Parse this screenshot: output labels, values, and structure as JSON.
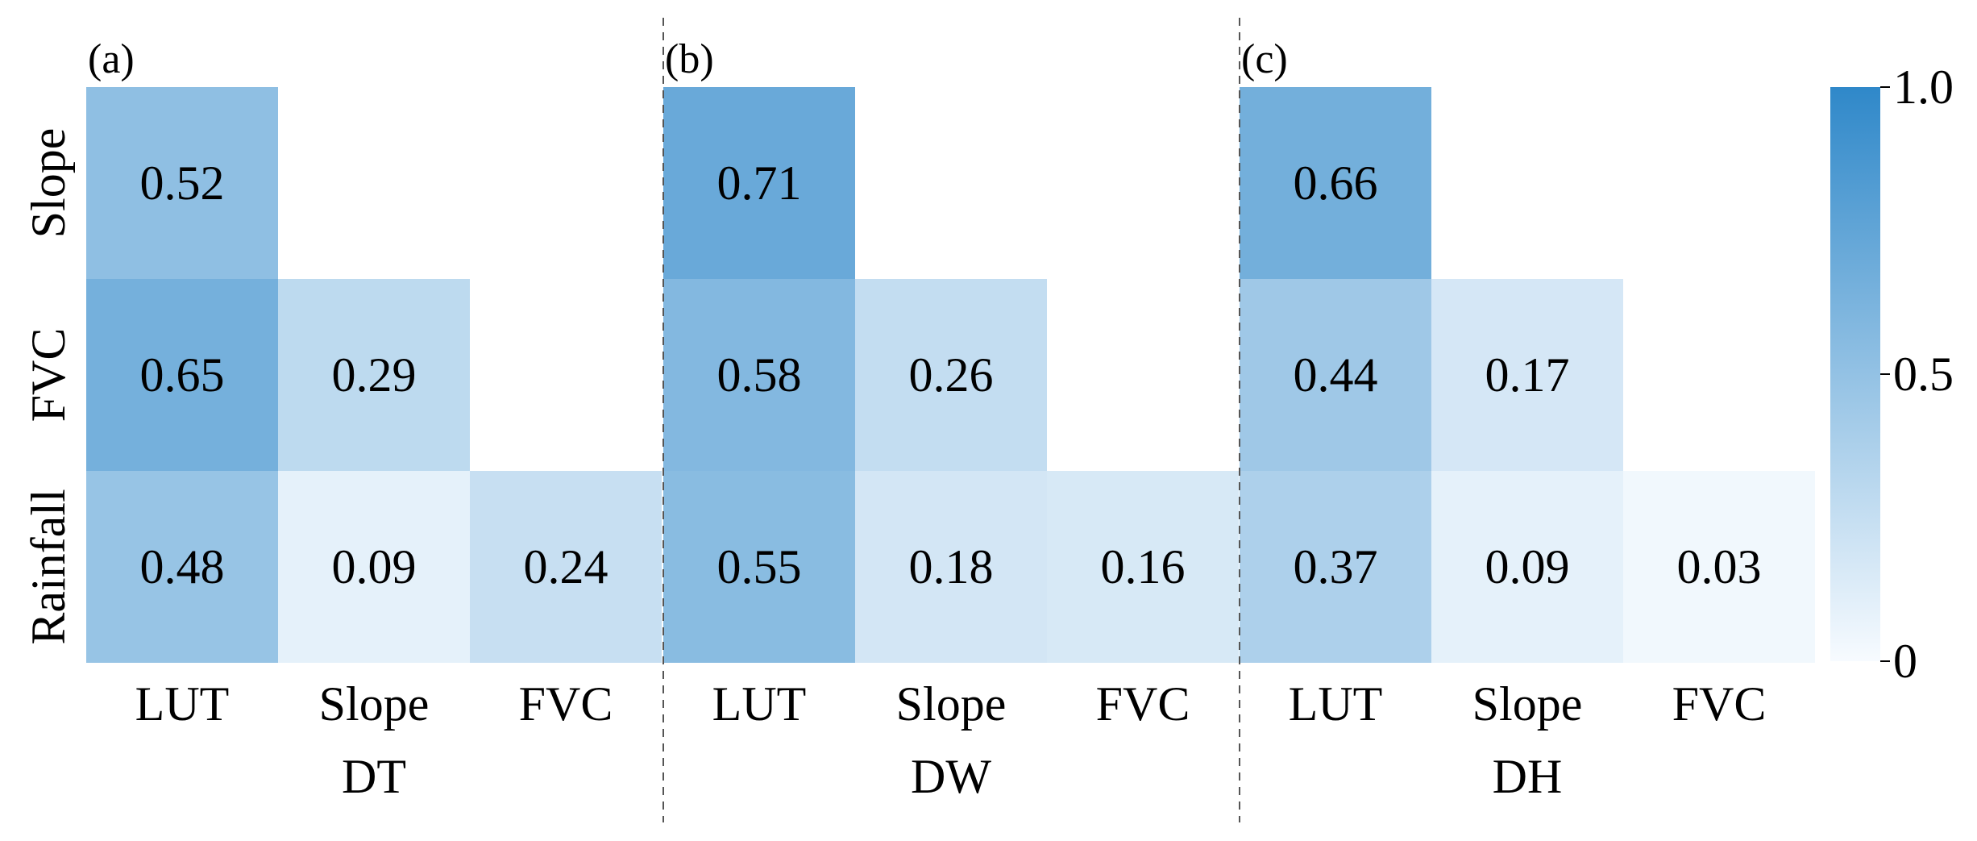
{
  "chart_data": {
    "type": "heatmap",
    "colormap": {
      "low": "#f7fbff",
      "high": "#2f88c9"
    },
    "vmin": 0,
    "vmax": 1.0,
    "colorbar": {
      "ticks": [
        "1.0",
        "0.5",
        "0"
      ],
      "tick_values": [
        1.0,
        0.5,
        0
      ]
    },
    "panels": [
      {
        "label": "(a)",
        "xlabel": "DT",
        "x_categories": [
          "LUT",
          "Slope",
          "FVC"
        ],
        "y_categories": [
          "Slope",
          "FVC",
          "Rainfall"
        ],
        "values": [
          [
            0.52,
            null,
            null
          ],
          [
            0.65,
            0.29,
            null
          ],
          [
            0.48,
            0.09,
            0.24
          ]
        ],
        "labels": [
          [
            "0.52",
            "",
            ""
          ],
          [
            "0.65",
            "0.29",
            ""
          ],
          [
            "0.48",
            "0.09",
            "0.24"
          ]
        ]
      },
      {
        "label": "(b)",
        "xlabel": "DW",
        "x_categories": [
          "LUT",
          "Slope",
          "FVC"
        ],
        "y_categories": [
          "Slope",
          "FVC",
          "Rainfall"
        ],
        "values": [
          [
            0.71,
            null,
            null
          ],
          [
            0.58,
            0.26,
            null
          ],
          [
            0.55,
            0.18,
            0.16
          ]
        ],
        "labels": [
          [
            "0.71",
            "",
            ""
          ],
          [
            "0.58",
            "0.26",
            ""
          ],
          [
            "0.55",
            "0.18",
            "0.16"
          ]
        ]
      },
      {
        "label": "(c)",
        "xlabel": "DH",
        "x_categories": [
          "LUT",
          "Slope",
          "FVC"
        ],
        "y_categories": [
          "Slope",
          "FVC",
          "Rainfall"
        ],
        "values": [
          [
            0.66,
            null,
            null
          ],
          [
            0.44,
            0.17,
            null
          ],
          [
            0.37,
            0.09,
            0.03
          ]
        ],
        "labels": [
          [
            "0.66",
            "",
            ""
          ],
          [
            "0.44",
            "0.17",
            ""
          ],
          [
            "0.37",
            "0.09",
            "0.03"
          ]
        ]
      }
    ]
  }
}
